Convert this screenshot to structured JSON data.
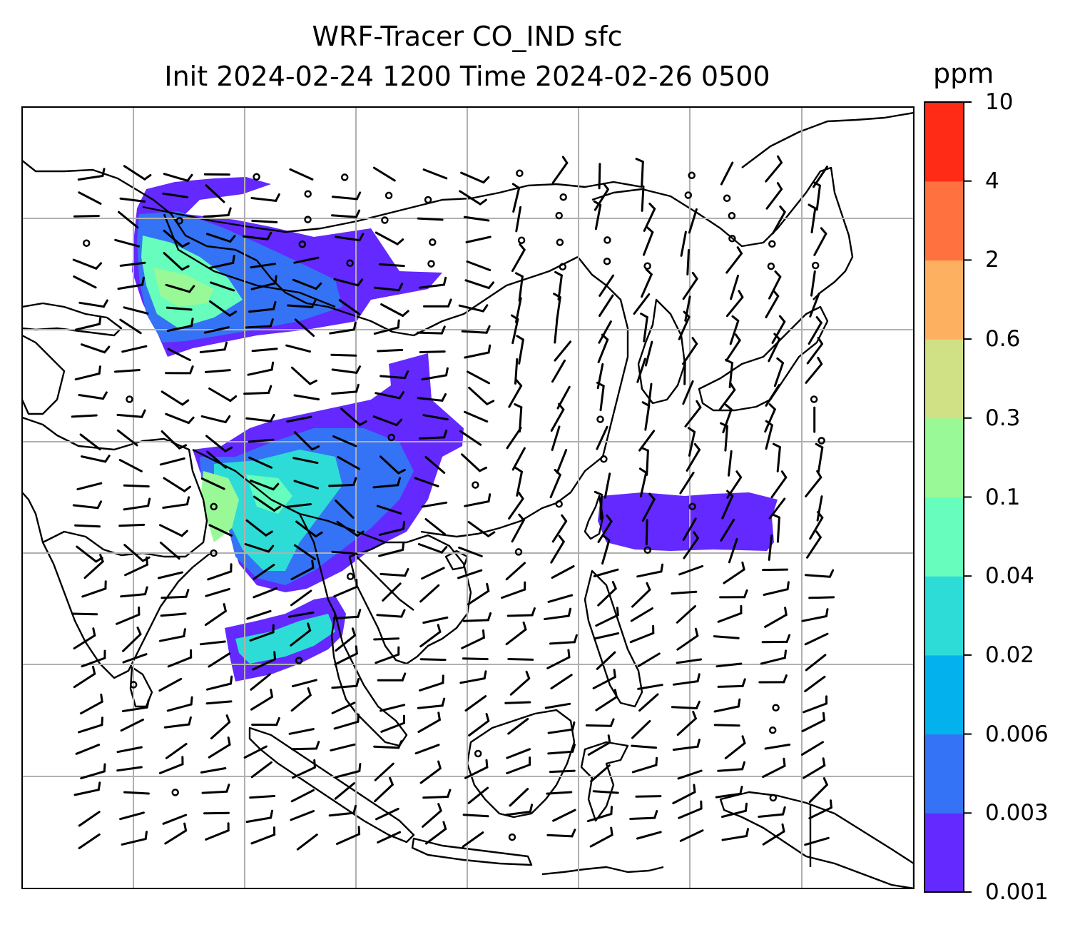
{
  "title": {
    "line1": "WRF-Tracer CO_IND sfc",
    "line2": "Init 2024-02-24 1200 Time 2024-02-26 0500"
  },
  "colorbar": {
    "unit": "ppm",
    "levels": [
      "0.001",
      "0.003",
      "0.006",
      "0.02",
      "0.04",
      "0.1",
      "0.3",
      "0.6",
      "2",
      "4",
      "10"
    ],
    "colors": [
      "#6329ff",
      "#3473f5",
      "#03b1ec",
      "#2ddcd6",
      "#66fdbd",
      "#99f996",
      "#cfe184",
      "#feb061",
      "#ff723f",
      "#ff2b17"
    ]
  },
  "map": {
    "gridlines": true,
    "gridline_color": "#b0b0b0",
    "coastline_color": "#000000",
    "wind_symbol": "wind-barbs",
    "calm_symbol": "calm-circle"
  }
}
